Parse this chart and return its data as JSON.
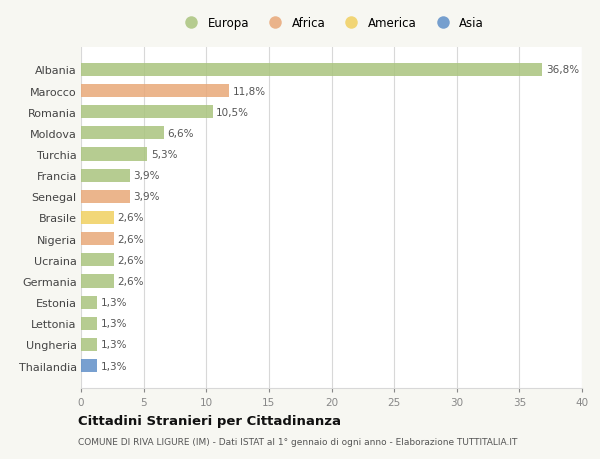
{
  "categories": [
    "Albania",
    "Marocco",
    "Romania",
    "Moldova",
    "Turchia",
    "Francia",
    "Senegal",
    "Brasile",
    "Nigeria",
    "Ucraina",
    "Germania",
    "Estonia",
    "Lettonia",
    "Ungheria",
    "Thailandia"
  ],
  "values": [
    36.8,
    11.8,
    10.5,
    6.6,
    5.3,
    3.9,
    3.9,
    2.6,
    2.6,
    2.6,
    2.6,
    1.3,
    1.3,
    1.3,
    1.3
  ],
  "labels": [
    "36,8%",
    "11,8%",
    "10,5%",
    "6,6%",
    "5,3%",
    "3,9%",
    "3,9%",
    "2,6%",
    "2,6%",
    "2,6%",
    "2,6%",
    "1,3%",
    "1,3%",
    "1,3%",
    "1,3%"
  ],
  "continents": [
    "Europa",
    "Africa",
    "Europa",
    "Europa",
    "Europa",
    "Europa",
    "Africa",
    "America",
    "Africa",
    "Europa",
    "Europa",
    "Europa",
    "Europa",
    "Europa",
    "Asia"
  ],
  "continent_colors": {
    "Europa": "#aac47e",
    "Africa": "#e8a878",
    "America": "#f0d060",
    "Asia": "#6090c8"
  },
  "legend_order": [
    "Europa",
    "Africa",
    "America",
    "Asia"
  ],
  "title": "Cittadini Stranieri per Cittadinanza",
  "subtitle": "COMUNE DI RIVA LIGURE (IM) - Dati ISTAT al 1° gennaio di ogni anno - Elaborazione TUTTITALIA.IT",
  "xlim": [
    0,
    40
  ],
  "xticks": [
    0,
    5,
    10,
    15,
    20,
    25,
    30,
    35,
    40
  ],
  "background_color": "#f7f7f2",
  "bar_background": "#ffffff",
  "grid_color": "#d8d8d8"
}
